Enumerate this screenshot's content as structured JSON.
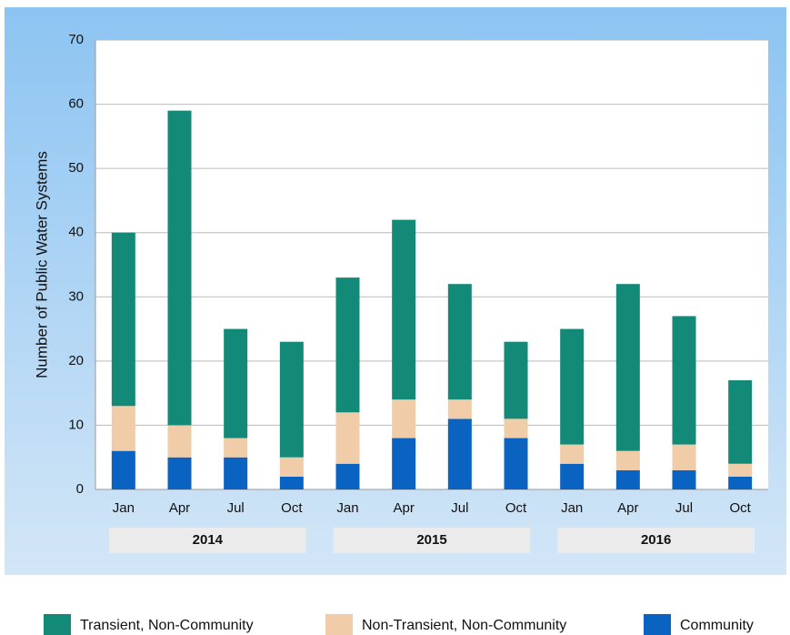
{
  "chart_data": {
    "type": "stacked_bar",
    "y_label": "Number of Public Water Systems",
    "categories": [
      "Jan",
      "Apr",
      "Jul",
      "Oct",
      "Jan",
      "Apr",
      "Jul",
      "Oct",
      "Jan",
      "Apr",
      "Jul",
      "Oct"
    ],
    "years": [
      "2014",
      "2015",
      "2016"
    ],
    "series": [
      {
        "name": "Community",
        "color": "#0a63c0",
        "values": [
          6,
          5,
          5,
          2,
          4,
          8,
          11,
          8,
          4,
          3,
          3,
          2
        ]
      },
      {
        "name": "Non-Transient, Non-Community",
        "color": "#f0cda8",
        "values": [
          7,
          5,
          3,
          3,
          8,
          6,
          3,
          3,
          3,
          3,
          4,
          2
        ]
      },
      {
        "name": "Transient, Non-Community",
        "color": "#138a78",
        "values": [
          27,
          49,
          17,
          18,
          21,
          28,
          18,
          12,
          18,
          26,
          20,
          13
        ]
      }
    ],
    "ylim": [
      0,
      70
    ],
    "yticks": [
      0,
      10,
      20,
      30,
      40,
      50,
      60,
      70
    ],
    "grid": true
  }
}
